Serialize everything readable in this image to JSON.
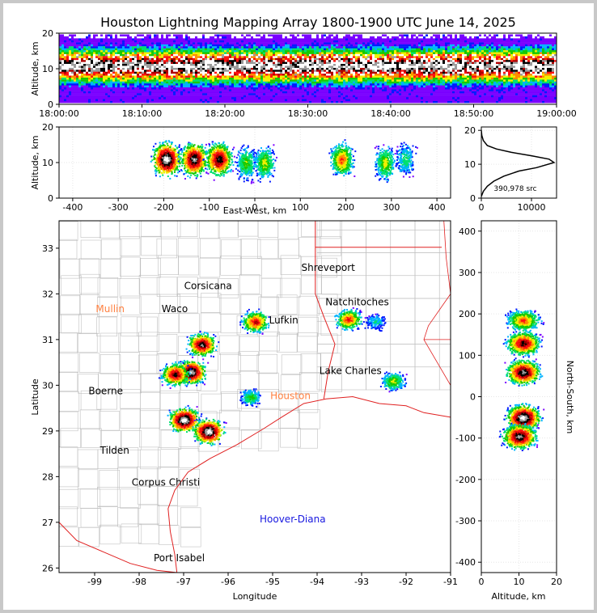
{
  "title": "Houston Lightning Mapping Array 1800-1900 UTC June 14, 2025",
  "colors": {
    "density_scale": [
      "#7a00ff",
      "#0018ff",
      "#00b4ff",
      "#00e070",
      "#19c800",
      "#f0f000",
      "#ff8c00",
      "#ff1010",
      "#b00000",
      "#000000",
      "#9a9a9a",
      "#ffffff"
    ],
    "state_border": "#e02020",
    "county_border": "#c0c0c0",
    "coast": "#e02020",
    "label_orange": "#ff8040",
    "label_blue": "#1818e0",
    "label_black": "#000000"
  },
  "chart_data": [
    {
      "type": "heatmap",
      "panel": "altitude-time",
      "ylabel": "Altitude, km",
      "xlabel": "",
      "xlim": [
        "18:00:00",
        "19:00:00"
      ],
      "ylim": [
        0,
        20
      ],
      "xticks": [
        "18:00:00",
        "18:10:00",
        "18:20:00",
        "18:30:00",
        "18:40:00",
        "18:50:00",
        "19:00:00"
      ],
      "yticks": [
        0,
        10,
        20
      ],
      "core_altitude_km": [
        8,
        14
      ],
      "peak_altitude_km": 10.5
    },
    {
      "type": "heatmap",
      "panel": "altitude-east-west",
      "xlabel": "East-West, km",
      "ylabel": "Altitude, km",
      "xlim": [
        -430,
        430
      ],
      "ylim": [
        0,
        20
      ],
      "xticks": [
        -400,
        -300,
        -200,
        -100,
        0,
        100,
        200,
        300,
        400
      ],
      "yticks": [
        0,
        10,
        20
      ],
      "clusters": [
        {
          "x": -195,
          "alt": 11,
          "intensity": 1.0
        },
        {
          "x": -135,
          "alt": 11,
          "intensity": 0.9
        },
        {
          "x": -80,
          "alt": 11,
          "intensity": 0.85
        },
        {
          "x": -20,
          "alt": 10,
          "intensity": 0.4
        },
        {
          "x": 20,
          "alt": 10,
          "intensity": 0.45
        },
        {
          "x": 190,
          "alt": 11,
          "intensity": 0.6
        },
        {
          "x": 285,
          "alt": 10,
          "intensity": 0.45
        },
        {
          "x": 330,
          "alt": 11,
          "intensity": 0.3
        }
      ]
    },
    {
      "type": "line",
      "panel": "altitude-histogram",
      "annotation": "390,978 src",
      "xlim": [
        0,
        15000
      ],
      "ylim": [
        0,
        21
      ],
      "xticks": [
        0,
        10000
      ],
      "yticks": [
        0,
        10,
        20
      ],
      "x": [
        0,
        400,
        1200,
        2500,
        4500,
        7500,
        11000,
        14500,
        13500,
        10000,
        6000,
        3000,
        1200,
        400,
        100,
        0
      ],
      "y": [
        0.5,
        2,
        3.5,
        5,
        6.5,
        8,
        9,
        10.5,
        11.5,
        12.5,
        13.5,
        14.5,
        15.5,
        17,
        18.5,
        20
      ]
    },
    {
      "type": "scatter",
      "panel": "plan-view",
      "xlabel": "Longitude",
      "ylabel": "Latitude",
      "xlim": [
        -99.8,
        -91
      ],
      "ylim": [
        25.9,
        33.6
      ],
      "xticks": [
        -99,
        -98,
        -97,
        -96,
        -95,
        -94,
        -93,
        -92,
        -91
      ],
      "yticks": [
        26,
        27,
        28,
        29,
        30,
        31,
        32,
        33
      ],
      "storms": [
        {
          "lon": -97.0,
          "lat": 29.25,
          "intensity": 1.0
        },
        {
          "lon": -96.45,
          "lat": 29.0,
          "intensity": 1.0
        },
        {
          "lon": -96.85,
          "lat": 30.3,
          "intensity": 0.95
        },
        {
          "lon": -97.2,
          "lat": 30.25,
          "intensity": 0.8
        },
        {
          "lon": -96.6,
          "lat": 30.9,
          "intensity": 0.85
        },
        {
          "lon": -95.4,
          "lat": 31.4,
          "intensity": 0.7
        },
        {
          "lon": -93.3,
          "lat": 31.45,
          "intensity": 0.65
        },
        {
          "lon": -95.5,
          "lat": 29.75,
          "intensity": 0.35
        },
        {
          "lon": -92.3,
          "lat": 30.1,
          "intensity": 0.45
        },
        {
          "lon": -92.7,
          "lat": 31.4,
          "intensity": 0.25
        }
      ],
      "cities": [
        {
          "name": "Shreveport",
          "lon": -93.75,
          "lat": 32.5,
          "color": "#000000"
        },
        {
          "name": "Corsicana",
          "lon": -96.45,
          "lat": 32.1,
          "color": "#000000"
        },
        {
          "name": "Mullin",
          "lon": -98.65,
          "lat": 31.6,
          "color": "#ff8040"
        },
        {
          "name": "Waco",
          "lon": -97.2,
          "lat": 31.6,
          "color": "#000000"
        },
        {
          "name": "Natchitoches",
          "lon": -93.1,
          "lat": 31.75,
          "color": "#000000"
        },
        {
          "name": "Lufkin",
          "lon": -94.75,
          "lat": 31.35,
          "color": "#000000"
        },
        {
          "name": "Lake Charles",
          "lon": -93.25,
          "lat": 30.25,
          "color": "#000000"
        },
        {
          "name": "Boerne",
          "lon": -98.75,
          "lat": 29.8,
          "color": "#000000"
        },
        {
          "name": "Houston",
          "lon": -94.6,
          "lat": 29.7,
          "color": "#ff8040"
        },
        {
          "name": "Tilden",
          "lon": -98.55,
          "lat": 28.5,
          "color": "#000000"
        },
        {
          "name": "Corpus Christi",
          "lon": -97.4,
          "lat": 27.8,
          "color": "#000000"
        },
        {
          "name": "Hoover-Diana",
          "lon": -94.55,
          "lat": 27.0,
          "color": "#1818e0"
        },
        {
          "name": "Port Isabel",
          "lon": -97.1,
          "lat": 26.15,
          "color": "#000000"
        }
      ]
    },
    {
      "type": "heatmap",
      "panel": "north-south-altitude",
      "xlabel": "Altitude, km",
      "ylabel": "North-South, km",
      "xlim": [
        0,
        20
      ],
      "ylim": [
        -425,
        425
      ],
      "xticks": [
        0,
        10,
        20
      ],
      "yticks": [
        -400,
        -300,
        -200,
        -100,
        0,
        100,
        200,
        300,
        400
      ],
      "clusters": [
        {
          "ns": 185,
          "alt": 11,
          "intensity": 0.6
        },
        {
          "ns": 130,
          "alt": 11,
          "intensity": 0.8
        },
        {
          "ns": 60,
          "alt": 11,
          "intensity": 0.9
        },
        {
          "ns": -50,
          "alt": 11,
          "intensity": 1.0
        },
        {
          "ns": -95,
          "alt": 10,
          "intensity": 0.9
        }
      ]
    }
  ]
}
